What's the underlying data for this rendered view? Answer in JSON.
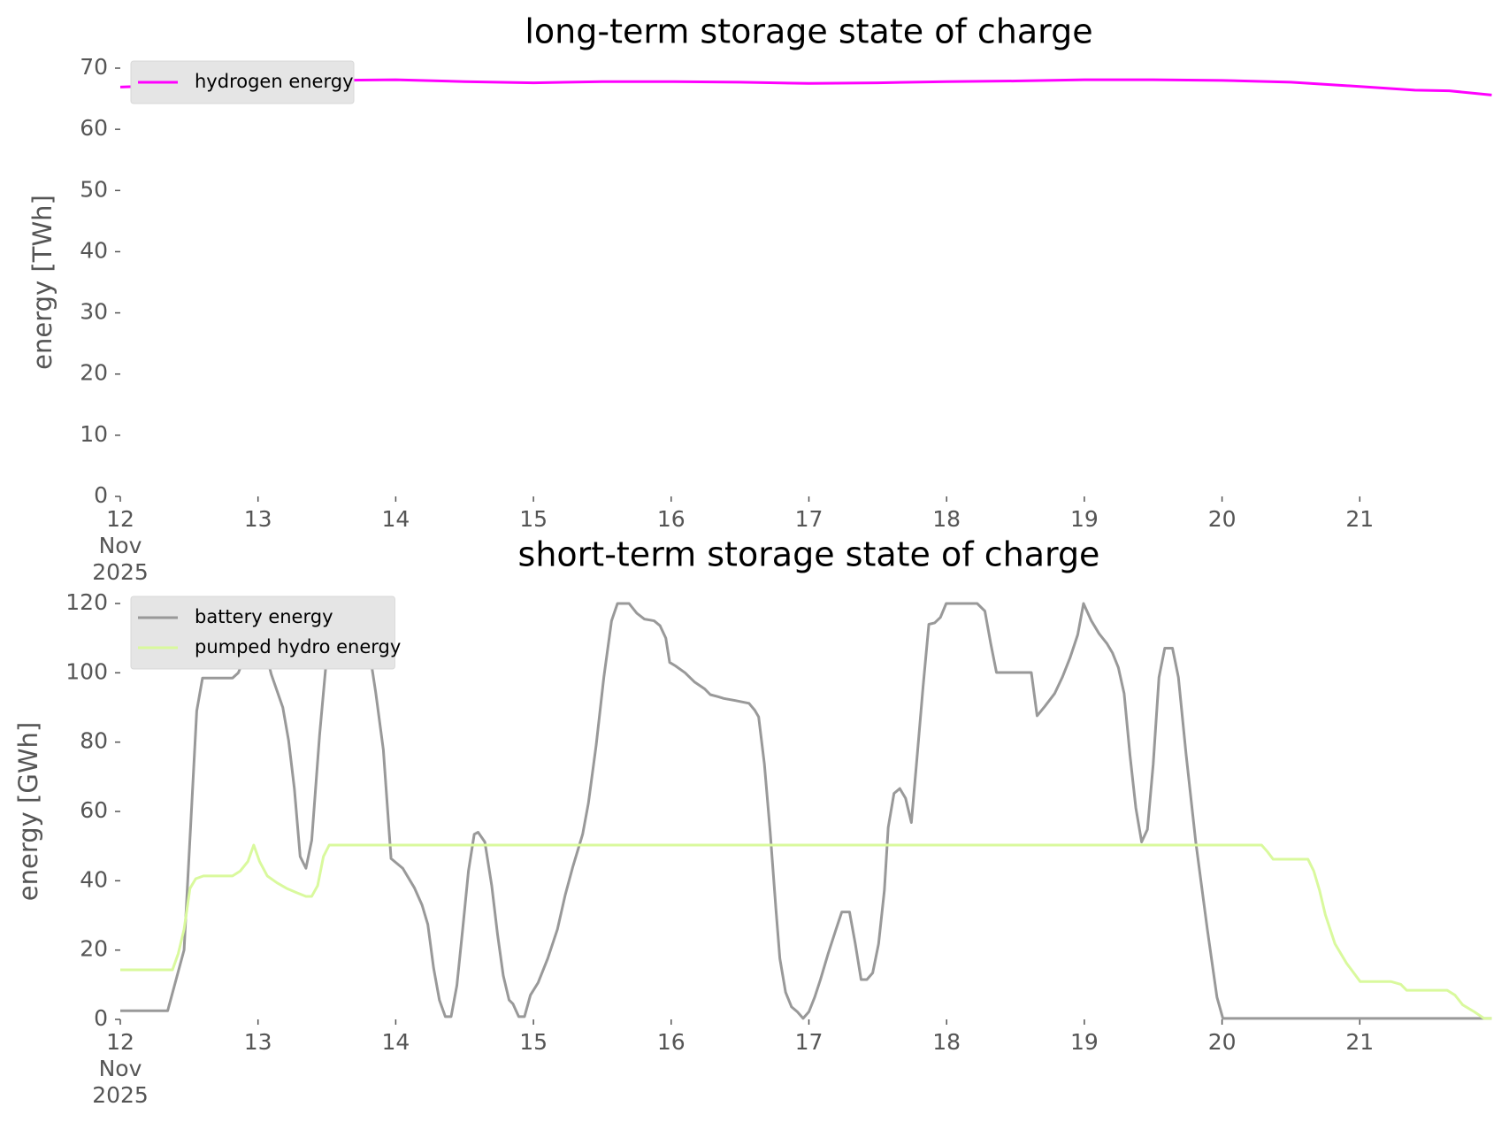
{
  "chart_data": [
    {
      "type": "line",
      "title": "long-term storage state of charge",
      "ylabel": "energy [TWh]",
      "xlim": [
        12,
        22
      ],
      "xticks": [
        {
          "value": 12,
          "label": "12\nNov\n2025"
        },
        13,
        14,
        15,
        16,
        17,
        18,
        19,
        20,
        21
      ],
      "ylim": [
        0,
        70
      ],
      "yticks": [
        0,
        10,
        20,
        30,
        40,
        50,
        60,
        70
      ],
      "legend": "upper left",
      "series": [
        {
          "name": "hydrogen energy",
          "color": "#ff00ff",
          "x": [
            12,
            12.5,
            13,
            13.5,
            14,
            14.5,
            15,
            15.5,
            16,
            16.5,
            17,
            17.5,
            18,
            18.5,
            19,
            19.5,
            20,
            20.5,
            21,
            21.4,
            21.65,
            21.958
          ],
          "values": [
            66.9,
            67.3,
            67.7,
            68.0,
            68.1,
            67.8,
            67.6,
            67.8,
            67.8,
            67.7,
            67.5,
            67.6,
            67.8,
            67.9,
            68.1,
            68.1,
            68.0,
            67.7,
            67.0,
            66.4,
            66.3,
            65.6
          ]
        }
      ]
    },
    {
      "type": "line",
      "title": "short-term storage state of charge",
      "ylabel": "energy [GWh]",
      "xlim": [
        12,
        22
      ],
      "xticks": [
        {
          "value": 12,
          "label": "12\nNov\n2025"
        },
        13,
        14,
        15,
        16,
        17,
        18,
        19,
        20,
        21
      ],
      "ylim": [
        0,
        120
      ],
      "yticks": [
        0,
        20,
        40,
        60,
        80,
        100,
        120
      ],
      "legend": "upper left",
      "series": [
        {
          "name": "battery energy",
          "color": "#999999",
          "x": [
            12,
            12.344,
            12.463,
            12.555,
            12.597,
            12.815,
            12.857,
            12.899,
            12.955,
            13.025,
            13.096,
            13.18,
            13.222,
            13.264,
            13.306,
            13.348,
            13.39,
            13.447,
            13.517,
            13.545,
            13.728,
            13.784,
            13.854,
            13.91,
            13.966,
            14.051,
            14.135,
            14.191,
            14.233,
            14.275,
            14.317,
            14.36,
            14.402,
            14.444,
            14.486,
            14.528,
            14.57,
            14.598,
            14.647,
            14.697,
            14.739,
            14.781,
            14.823,
            14.851,
            14.893,
            14.935,
            14.978,
            15.034,
            15.104,
            15.174,
            15.23,
            15.287,
            15.357,
            15.399,
            15.455,
            15.511,
            15.567,
            15.61,
            15.694,
            15.75,
            15.806,
            15.876,
            15.919,
            15.961,
            15.989,
            16.031,
            16.101,
            16.171,
            16.242,
            16.284,
            16.34,
            16.382,
            16.466,
            16.565,
            16.607,
            16.635,
            16.677,
            16.719,
            16.761,
            16.789,
            16.831,
            16.874,
            16.916,
            16.958,
            17.0,
            17.042,
            17.084,
            17.14,
            17.197,
            17.239,
            17.295,
            17.337,
            17.379,
            17.421,
            17.463,
            17.506,
            17.548,
            17.576,
            17.618,
            17.66,
            17.702,
            17.744,
            17.787,
            17.829,
            17.871,
            17.913,
            17.955,
            17.997,
            18.222,
            18.278,
            18.32,
            18.362,
            18.615,
            18.657,
            18.713,
            18.784,
            18.84,
            18.896,
            18.952,
            18.994,
            19.051,
            19.107,
            19.163,
            19.205,
            19.247,
            19.289,
            19.331,
            19.374,
            19.416,
            19.458,
            19.5,
            19.542,
            19.584,
            19.64,
            19.683,
            19.739,
            19.809,
            19.893,
            19.963,
            20.006,
            21.958
          ],
          "values": [
            2.5,
            2.5,
            20,
            89,
            98.5,
            98.5,
            100,
            104,
            118,
            111,
            99.6,
            90,
            80.5,
            66.6,
            47,
            43.6,
            51.7,
            82,
            112.7,
            120,
            120,
            112.7,
            94.5,
            77.8,
            46.4,
            43.6,
            38,
            33,
            27.4,
            14.8,
            5.6,
            0.8,
            0.8,
            9.8,
            26,
            42.8,
            53.4,
            54,
            51.2,
            38.6,
            24.6,
            12.6,
            5.6,
            4.5,
            0.8,
            0.8,
            7,
            10.6,
            17.6,
            26,
            35.8,
            44.2,
            53.4,
            62.4,
            79,
            98.7,
            115,
            120,
            120,
            117.2,
            115.5,
            115,
            113.6,
            110,
            103,
            102,
            100,
            97.3,
            95.4,
            93.7,
            93.1,
            92.6,
            92,
            91.2,
            89.2,
            87.3,
            73.6,
            54,
            31.6,
            17.6,
            7.8,
            3.6,
            2.2,
            0.3,
            2.2,
            6.4,
            11.5,
            19,
            26,
            31,
            31,
            21.8,
            11.5,
            11.5,
            13.4,
            21.8,
            37.2,
            55.4,
            65.2,
            66.6,
            63.8,
            56.8,
            76.4,
            96,
            114,
            114.4,
            116,
            120,
            120,
            117.8,
            108.5,
            100.1,
            100.1,
            87.6,
            90.3,
            94,
            98.7,
            104.3,
            111,
            120,
            115,
            111.3,
            108.5,
            105.7,
            101.5,
            94,
            76.4,
            61,
            51.2,
            54.8,
            73.6,
            98.7,
            107.1,
            107.1,
            98.7,
            76.4,
            51.2,
            26,
            6.4,
            0.3,
            0.3
          ]
        },
        {
          "name": "pumped hydro energy",
          "color": "#d9f99d",
          "x": [
            12,
            12.379,
            12.421,
            12.463,
            12.506,
            12.548,
            12.604,
            12.815,
            12.871,
            12.927,
            12.969,
            13.011,
            13.067,
            13.138,
            13.208,
            13.278,
            13.348,
            13.39,
            13.433,
            13.475,
            13.517,
            20.287,
            20.329,
            20.371,
            20.624,
            20.666,
            20.708,
            20.75,
            20.82,
            20.904,
            21.003,
            21.228,
            21.298,
            21.34,
            21.635,
            21.691,
            21.747,
            21.831,
            21.902,
            21.958
          ],
          "values": [
            14.3,
            14.3,
            19,
            26,
            37.8,
            40.6,
            41.4,
            41.4,
            42.8,
            45.6,
            50.3,
            45.6,
            41.4,
            39.4,
            37.8,
            36.6,
            35.5,
            35.5,
            38.6,
            47,
            50.3,
            50.3,
            48.4,
            46.2,
            46.2,
            42.8,
            37.2,
            30.2,
            21.8,
            16.2,
            10.9,
            10.9,
            10.1,
            8.4,
            8.4,
            7,
            4.2,
            2.2,
            0.3,
            0.3
          ]
        }
      ]
    }
  ]
}
